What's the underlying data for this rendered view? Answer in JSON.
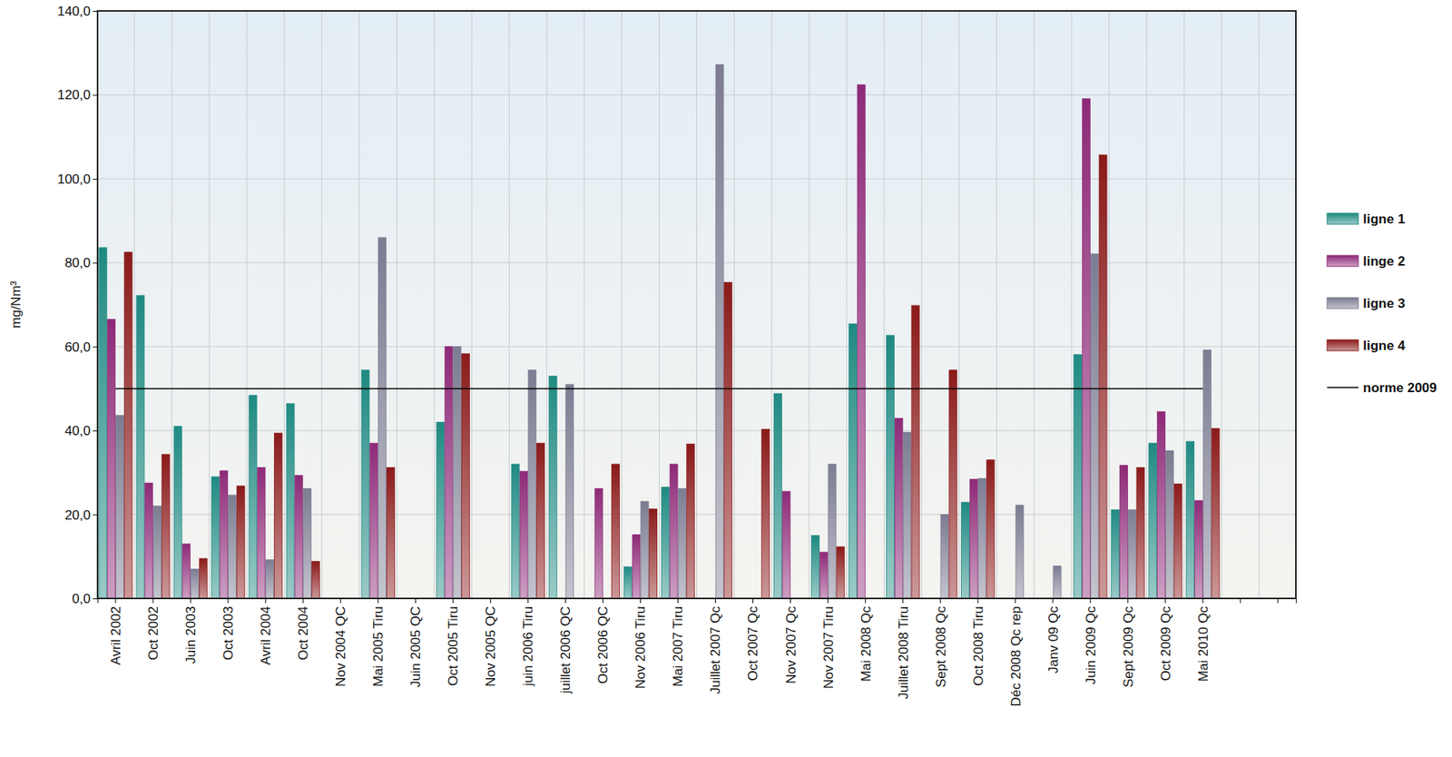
{
  "chart_data": {
    "type": "bar",
    "y_label": "mg/Nm³",
    "categories": [
      "Avril 2002",
      "Oct 2002",
      "Juin 2003",
      "Oct 2003",
      "Avril 2004",
      "Oct 2004",
      "Nov 2004 QC",
      "Mai 2005 Tiru",
      "Juin 2005 QC",
      "Oct 2005 Tiru",
      "Nov 2005 QC",
      "juin 2006 Tiru",
      "juillet 2006 QC",
      "Oct 2006 QC",
      "Nov 2006 Tiru",
      "Mai 2007 Tiru",
      "Juillet 2007 Qc",
      "Oct 2007 Qc",
      "Nov 2007 Qc",
      "Nov 2007 Tiru",
      "Mai 2008 Qc",
      "Juillet 2008 Tiru",
      "Sept 2008 Qc",
      "Oct 2008 Tiru",
      "Déc 2008 Qc rep",
      "Janv 09 Qc",
      "Juin 2009 Qc",
      "Sept 2009 Qc",
      "Oct 2009 Qc",
      "Mai 2010 Qc",
      null,
      null
    ],
    "series": [
      {
        "name": "ligne 1",
        "color": "#1f8a82",
        "values": [
          83.6,
          72.2,
          41,
          29,
          48.4,
          46.4,
          null,
          54.4,
          null,
          42,
          null,
          32,
          53,
          null,
          7.5,
          26.5,
          null,
          null,
          48.8,
          15,
          65.4,
          62.7,
          null,
          22.9,
          null,
          null,
          58.1,
          21.1,
          37,
          37.4,
          null,
          null
        ]
      },
      {
        "name": "linge 2",
        "color": "#8e2a78",
        "values": [
          66.5,
          27.5,
          13,
          30.4,
          31.2,
          29.3,
          null,
          37,
          null,
          60,
          null,
          30.3,
          null,
          26.2,
          15.2,
          32,
          null,
          null,
          25.5,
          11,
          122.4,
          42.9,
          null,
          28.4,
          null,
          null,
          119.1,
          31.7,
          44.5,
          23.3,
          null,
          null
        ]
      },
      {
        "name": "ligne 3",
        "color": "#7c7c92",
        "values": [
          43.6,
          22,
          7,
          24.6,
          9.2,
          26.2,
          null,
          86,
          null,
          60,
          null,
          54.4,
          51,
          null,
          23.1,
          26.2,
          127.2,
          null,
          null,
          32,
          null,
          39.6,
          20,
          28.6,
          22.2,
          7.7,
          82.1,
          21.1,
          35.2,
          59.2,
          null,
          null
        ]
      },
      {
        "name": "ligne 4",
        "color": "#8b1a1a",
        "values": [
          82.5,
          34.3,
          9.5,
          26.8,
          39.4,
          8.8,
          null,
          31.2,
          null,
          58.3,
          null,
          37,
          null,
          32,
          21.3,
          36.8,
          75.3,
          40.3,
          null,
          12.3,
          null,
          69.8,
          54.4,
          33,
          null,
          null,
          105.7,
          31.2,
          27.3,
          40.5,
          null,
          null
        ]
      },
      {
        "name": "norme 2009",
        "type": "line",
        "color": "#000000",
        "values": [
          50,
          50,
          50,
          50,
          50,
          50,
          50,
          50,
          50,
          50,
          50,
          50,
          50,
          50,
          50,
          50,
          50,
          50,
          50,
          50,
          50,
          50,
          50,
          50,
          50,
          50,
          50,
          50,
          50,
          50,
          null,
          null
        ]
      }
    ],
    "ylim": [
      0,
      140
    ],
    "yticks": [
      {
        "value": 0,
        "label": "0,0"
      },
      {
        "value": 20,
        "label": "20,0"
      },
      {
        "value": 40,
        "label": "40,0"
      },
      {
        "value": 60,
        "label": "60,0"
      },
      {
        "value": 80,
        "label": "80,0"
      },
      {
        "value": 100,
        "label": "100,0"
      },
      {
        "value": 120,
        "label": "120,0"
      },
      {
        "value": 140,
        "label": "140,0"
      }
    ],
    "grid": true,
    "legend": "right"
  }
}
